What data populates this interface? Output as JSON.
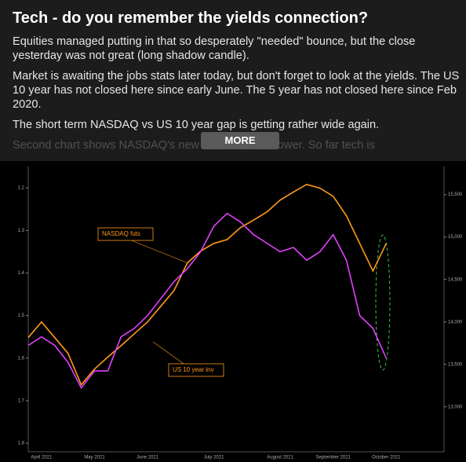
{
  "header": {
    "title": "Tech - do you remember the yields connection?"
  },
  "paragraphs": [
    "Equities managed putting in that so desperately \"needed\" bounce, but the close yesterday was not great (long shadow candle).",
    "Market is awaiting the jobs stats later today, but don't forget to look at the yields. The US 10 year has not closed here since early June. The 5 year has not closed here since Feb 2020.",
    "The short term NASDAQ vs US 10 year gap is getting rather wide again.",
    "Second chart shows NASDAQ's new trend channel lower. So far tech is"
  ],
  "button": "MORE",
  "chart_data": {
    "type": "line",
    "categories": [
      null,
      "April 2021",
      null,
      null,
      null,
      "May 2021",
      null,
      null,
      null,
      "June 2021",
      null,
      null,
      null,
      null,
      "July 2021",
      null,
      null,
      null,
      null,
      "August 2021",
      null,
      null,
      null,
      "September 2021",
      null,
      null,
      null,
      "October 2021"
    ],
    "series": [
      {
        "name": "NASDAQ futs",
        "color": "#ff9a1a",
        "values": [
          13815,
          14000,
          13815,
          13630,
          13260,
          13445,
          13585,
          13720,
          13860,
          14000,
          14185,
          14370,
          14695,
          14835,
          14925,
          14970,
          15110,
          15200,
          15295,
          15435,
          15530,
          15620,
          15575,
          15480,
          15250,
          14925,
          14600,
          14925
        ]
      },
      {
        "name": "US 10 year inv",
        "color": "#e040fb",
        "axis": "y2",
        "values": [
          1.57,
          1.55,
          1.57,
          1.61,
          1.67,
          1.63,
          1.63,
          1.55,
          1.53,
          1.5,
          1.46,
          1.42,
          1.39,
          1.35,
          1.29,
          1.26,
          1.28,
          1.31,
          1.33,
          1.35,
          1.34,
          1.37,
          1.35,
          1.31,
          1.37,
          1.5,
          1.53,
          1.6
        ]
      }
    ],
    "ylim": [
      12470,
      15830
    ],
    "yticks": [
      {
        "value": 13000,
        "label": "13,000"
      },
      {
        "value": 13500,
        "label": "13,500"
      },
      {
        "value": 14000,
        "label": "14,000"
      },
      {
        "value": 14500,
        "label": "14,500"
      },
      {
        "value": 15000,
        "label": "15,000"
      },
      {
        "value": 15500,
        "label": "15,500"
      }
    ],
    "y2lim": [
      1.82,
      1.15
    ],
    "y2ticks": [
      1.2,
      1.3,
      1.4,
      1.5,
      1.6,
      1.7,
      1.8
    ]
  }
}
